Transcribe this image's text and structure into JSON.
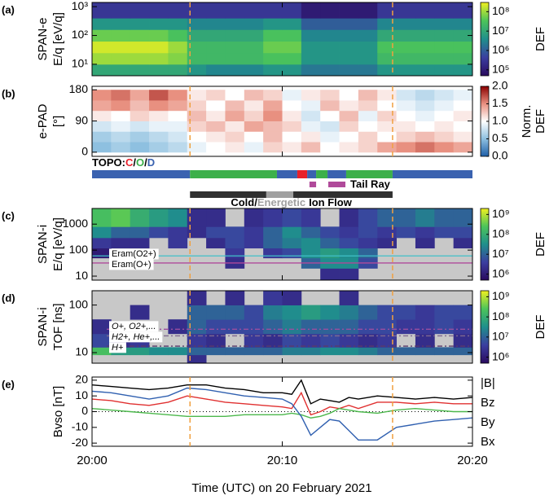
{
  "figure": {
    "xlim": [
      0,
      20
    ],
    "xticks": [
      {
        "value": 0,
        "label": "20:00"
      },
      {
        "value": 10,
        "label": "20:10"
      },
      {
        "value": 20,
        "label": "20:20"
      }
    ],
    "xlabel": "Time (UTC) on 20 February 2021",
    "markers": [
      5.15,
      15.8
    ],
    "marker_color": "#f0a040",
    "topology": {
      "label": "TOPO:",
      "separator": "/",
      "classes": [
        {
          "name": "C",
          "color": "#e8202a"
        },
        {
          "name": "O",
          "color": "#3cb04a"
        },
        {
          "name": "D",
          "color": "#3a62b0"
        }
      ],
      "segments": [
        {
          "start": 0,
          "end": 5.15,
          "class": 2
        },
        {
          "start": 5.15,
          "end": 9.72,
          "class": 1
        },
        {
          "start": 9.72,
          "end": 10.79,
          "class": 2
        },
        {
          "start": 10.79,
          "end": 11.31,
          "class": 0
        },
        {
          "start": 11.31,
          "end": 11.78,
          "class": 2
        },
        {
          "start": 11.78,
          "end": 12.38,
          "class": 1
        },
        {
          "start": 12.38,
          "end": 13.36,
          "class": 2
        },
        {
          "start": 13.36,
          "end": 15.8,
          "class": 1
        },
        {
          "start": 15.8,
          "end": 20,
          "class": 2
        }
      ]
    },
    "tail_ray": {
      "label": "Tail Ray",
      "color": "#b04a9a",
      "segments": [
        {
          "start": 11.43,
          "end": 11.78
        },
        {
          "start": 12.42,
          "end": 13.32
        }
      ]
    },
    "ion_flow": {
      "separator": "/",
      "suffix": "Ion Flow",
      "classes": [
        {
          "name": "Cold",
          "color": "#303030"
        },
        {
          "name": "Energetic",
          "color": "#a0a0a0"
        }
      ],
      "segments": [
        {
          "start": 5.15,
          "end": 9.16,
          "class": 0
        },
        {
          "start": 9.16,
          "end": 10.58,
          "class": 1
        },
        {
          "start": 10.58,
          "end": 15.8,
          "class": 0
        }
      ]
    }
  },
  "chart_data": [
    {
      "type": "heatmap",
      "label": "(a)",
      "ylabel": [
        "SPAN-e",
        "E/q [eV/q]"
      ],
      "ylog": true,
      "ylim": [
        4,
        1400
      ],
      "yticks": [
        {
          "value": 10,
          "label": "10¹"
        },
        {
          "value": 100,
          "label": "10²"
        },
        {
          "value": 1000,
          "label": "10³"
        }
      ],
      "x_edges": [
        0,
        1,
        2,
        3,
        4,
        5,
        6,
        7,
        8,
        9,
        10,
        11,
        12,
        13,
        14,
        15,
        16,
        17,
        18,
        19,
        20
      ],
      "y_edges": [
        4,
        10,
        25,
        63,
        160,
        400,
        1400
      ],
      "z": [
        [
          10000000.0,
          10000000.0,
          10000000.0,
          10000000.0,
          10000000.0,
          5000000.0,
          3000000.0,
          3000000.0,
          3000000.0,
          5000000.0,
          5000000.0,
          2000000.0,
          2000000.0,
          2000000.0,
          2000000.0,
          5000000.0,
          5000000.0,
          5000000.0,
          5000000.0,
          5000000.0
        ],
        [
          100000000.0,
          100000000.0,
          100000000.0,
          100000000.0,
          70000000.0,
          20000000.0,
          20000000.0,
          20000000.0,
          20000000.0,
          30000000.0,
          30000000.0,
          5000000.0,
          5000000.0,
          5000000.0,
          5000000.0,
          20000000.0,
          20000000.0,
          20000000.0,
          20000000.0,
          20000000.0
        ],
        [
          200000000.0,
          200000000.0,
          200000000.0,
          200000000.0,
          100000000.0,
          20000000.0,
          20000000.0,
          20000000.0,
          20000000.0,
          50000000.0,
          50000000.0,
          5000000.0,
          5000000.0,
          5000000.0,
          5000000.0,
          30000000.0,
          30000000.0,
          30000000.0,
          30000000.0,
          30000000.0
        ],
        [
          50000000.0,
          50000000.0,
          50000000.0,
          50000000.0,
          30000000.0,
          10000000.0,
          10000000.0,
          10000000.0,
          10000000.0,
          30000000.0,
          30000000.0,
          3000000.0,
          3000000.0,
          3000000.0,
          3000000.0,
          10000000.0,
          10000000.0,
          10000000.0,
          10000000.0,
          10000000.0
        ],
        [
          5000000.0,
          5000000.0,
          5000000.0,
          5000000.0,
          5000000.0,
          3000000.0,
          3000000.0,
          3000000.0,
          3000000.0,
          5000000.0,
          5000000.0,
          1000000.0,
          1000000.0,
          1000000.0,
          1000000.0,
          3000000.0,
          3000000.0,
          3000000.0,
          3000000.0,
          3000000.0
        ],
        [
          300000.0,
          300000.0,
          300000.0,
          300000.0,
          300000.0,
          300000.0,
          300000.0,
          300000.0,
          300000.0,
          300000.0,
          300000.0,
          100000.0,
          100000.0,
          100000.0,
          100000.0,
          300000.0,
          300000.0,
          300000.0,
          300000.0,
          300000.0
        ]
      ],
      "zlog": true,
      "zlim": [
        50000.0,
        300000000.0
      ],
      "colormap": "viridis",
      "zlabel": [
        "DEF"
      ],
      "zticks": [
        {
          "value": 100000.0,
          "label": "10⁵"
        },
        {
          "value": 1000000.0,
          "label": "10⁶"
        },
        {
          "value": 10000000.0,
          "label": "10⁷"
        },
        {
          "value": 100000000.0,
          "label": "10⁸"
        }
      ]
    },
    {
      "type": "heatmap",
      "label": "(b)",
      "ylabel": [
        "e-PAD",
        "[°]"
      ],
      "ylog": false,
      "ylim": [
        -12,
        190
      ],
      "yticks": [
        0,
        90,
        180
      ],
      "x_edges": [
        0,
        1,
        2,
        3,
        4,
        5,
        6,
        7,
        8,
        9,
        10,
        11,
        12,
        13,
        14,
        15,
        16,
        17,
        18,
        19,
        20
      ],
      "y_edges": [
        0,
        30,
        60,
        90,
        120,
        150,
        180
      ],
      "z": [
        [
          0.5,
          0.6,
          0.5,
          0.6,
          0.7,
          0.9,
          1.0,
          1.1,
          0.9,
          1.2,
          1.1,
          1.3,
          1.0,
          1.1,
          1.2,
          1.4,
          1.5,
          1.6,
          1.5,
          1.4
        ],
        [
          0.6,
          0.7,
          0.6,
          0.7,
          0.8,
          1.0,
          1.1,
          1.2,
          1.0,
          1.3,
          1.0,
          1.1,
          0.9,
          1.0,
          1.2,
          1.0,
          1.2,
          1.3,
          1.2,
          1.1
        ],
        [
          0.8,
          0.9,
          0.8,
          0.9,
          0.9,
          1.2,
          1.3,
          1.1,
          1.4,
          1.3,
          1.2,
          0.9,
          0.8,
          1.2,
          1.0,
          1.1,
          1.1,
          1.0,
          1.1,
          1.0
        ],
        [
          1.1,
          1.0,
          1.2,
          1.1,
          1.0,
          1.3,
          1.1,
          1.4,
          1.2,
          1.5,
          1.1,
          0.8,
          1.0,
          1.3,
          0.9,
          1.2,
          1.0,
          0.9,
          1.0,
          1.1
        ],
        [
          1.4,
          1.5,
          1.3,
          1.5,
          1.4,
          1.2,
          1.0,
          1.3,
          1.1,
          1.4,
          1.0,
          0.9,
          1.3,
          1.1,
          1.2,
          1.0,
          0.9,
          0.8,
          0.9,
          1.0
        ],
        [
          1.5,
          1.6,
          1.4,
          1.7,
          1.5,
          1.1,
          1.2,
          1.0,
          1.3,
          1.2,
          0.9,
          1.1,
          1.2,
          1.0,
          1.3,
          1.1,
          0.8,
          0.7,
          0.8,
          0.9
        ]
      ],
      "zlog": false,
      "zlim": [
        0,
        2
      ],
      "colormap": "bwr",
      "zlabel": [
        "Norm.",
        "DEF"
      ],
      "zticks": [
        {
          "value": 0,
          "label": "0.0"
        },
        0.5,
        {
          "value": 1,
          "label": "1.0"
        },
        1.5,
        {
          "value": 2,
          "label": "2.0"
        }
      ]
    },
    {
      "type": "heatmap",
      "label": "(c)",
      "ylabel": [
        "SPAN-i",
        "E/q [eV/q]"
      ],
      "ylog": true,
      "ylim": [
        7,
        4000
      ],
      "yticks": [
        10,
        100,
        1000
      ],
      "missing_color": "#c8c8c8",
      "x_edges": [
        0,
        1,
        2,
        3,
        4,
        5,
        6,
        7,
        8,
        9,
        10,
        11,
        12,
        13,
        14,
        15,
        16,
        17,
        18,
        19,
        20
      ],
      "y_edges": [
        7,
        20,
        50,
        120,
        300,
        800,
        4000
      ],
      "z": [
        [
          null,
          null,
          null,
          null,
          null,
          null,
          null,
          null,
          null,
          null,
          null,
          null,
          2000000.0,
          2000000.0,
          null,
          null,
          null,
          null,
          null,
          null
        ],
        [
          null,
          null,
          null,
          null,
          null,
          null,
          null,
          2000000.0,
          null,
          null,
          null,
          10000000.0,
          30000000.0,
          30000000.0,
          5000000.0,
          null,
          null,
          null,
          null,
          null
        ],
        [
          1000000.0,
          null,
          null,
          null,
          null,
          null,
          null,
          3000000.0,
          null,
          3000000.0,
          5000000.0,
          30000000.0,
          50000000.0,
          30000000.0,
          10000000.0,
          null,
          null,
          null,
          null,
          null
        ],
        [
          3000000.0,
          2000000.0,
          2000000.0,
          null,
          3000000.0,
          null,
          2000000.0,
          5000000.0,
          3000000.0,
          10000000.0,
          20000000.0,
          30000000.0,
          10000000.0,
          5000000.0,
          3000000.0,
          2000000.0,
          null,
          2000000.0,
          null,
          2000000.0
        ],
        [
          30000000.0,
          10000000.0,
          10000000.0,
          5000000.0,
          3000000.0,
          2000000.0,
          5000000.0,
          5000000.0,
          3000000.0,
          10000000.0,
          30000000.0,
          10000000.0,
          5000000.0,
          3000000.0,
          5000000.0,
          3000000.0,
          5000000.0,
          3000000.0,
          5000000.0,
          5000000.0
        ],
        [
          200000000.0,
          300000000.0,
          100000000.0,
          50000000.0,
          30000000.0,
          2000000.0,
          2000000.0,
          null,
          2000000.0,
          3000000.0,
          5000000.0,
          3000000.0,
          null,
          2000000.0,
          5000000.0,
          10000000.0,
          10000000.0,
          20000000.0,
          10000000.0,
          10000000.0
        ]
      ],
      "ref_lines": [
        {
          "label": "Eram(O2+)",
          "value": 60,
          "color": "#40c0c8"
        },
        {
          "label": "Eram(O+)",
          "value": 32,
          "color": "#b04a9a"
        }
      ],
      "ref_style": "solid",
      "zlog": true,
      "zlim": [
        500000.0,
        2000000000.0
      ],
      "colormap": "viridis",
      "zlabel": [
        "DEF"
      ],
      "zticks": [
        {
          "value": 1000000.0,
          "label": "10⁶"
        },
        {
          "value": 10000000.0,
          "label": "10⁷"
        },
        {
          "value": 100000000.0,
          "label": "10⁸"
        },
        {
          "value": 1000000000.0,
          "label": "10⁹"
        }
      ]
    },
    {
      "type": "heatmap",
      "label": "(d)",
      "ylabel": [
        "SPAN-i",
        "TOF [ns]"
      ],
      "ylog": true,
      "ylim": [
        6,
        200
      ],
      "yticks": [
        10,
        100
      ],
      "missing_color": "#c8c8c8",
      "x_edges": [
        0,
        1,
        2,
        3,
        4,
        5,
        6,
        7,
        8,
        9,
        10,
        11,
        12,
        13,
        14,
        15,
        16,
        17,
        18,
        19,
        20
      ],
      "y_edges": [
        6,
        9,
        13,
        25,
        50,
        100,
        200
      ],
      "z": [
        [
          null,
          null,
          null,
          null,
          null,
          2000000.0,
          null,
          null,
          null,
          null,
          null,
          null,
          null,
          null,
          null,
          null,
          null,
          null,
          null,
          null
        ],
        [
          200000000.0,
          50000000.0,
          50000000.0,
          30000000.0,
          30000000.0,
          10000000.0,
          10000000.0,
          10000000.0,
          10000000.0,
          10000000.0,
          20000000.0,
          20000000.0,
          30000000.0,
          30000000.0,
          20000000.0,
          10000000.0,
          10000000.0,
          10000000.0,
          10000000.0,
          10000000.0
        ],
        [
          5000000.0,
          2000000.0,
          3000000.0,
          null,
          null,
          3000000.0,
          2000000.0,
          null,
          3000000.0,
          2000000.0,
          5000000.0,
          3000000.0,
          5000000.0,
          3000000.0,
          2000000.0,
          3000000.0,
          null,
          2000000.0,
          null,
          2000000.0
        ],
        [
          2000000.0,
          null,
          null,
          null,
          2000000.0,
          10000000.0,
          5000000.0,
          5000000.0,
          5000000.0,
          10000000.0,
          20000000.0,
          10000000.0,
          10000000.0,
          10000000.0,
          5000000.0,
          5000000.0,
          3000000.0,
          3000000.0,
          5000000.0,
          3000000.0
        ],
        [
          null,
          null,
          2000000.0,
          null,
          null,
          10000000.0,
          10000000.0,
          10000000.0,
          5000000.0,
          20000000.0,
          30000000.0,
          50000000.0,
          30000000.0,
          20000000.0,
          10000000.0,
          5000000.0,
          5000000.0,
          3000000.0,
          5000000.0,
          5000000.0
        ],
        [
          null,
          null,
          null,
          null,
          null,
          2000000.0,
          null,
          2000000.0,
          null,
          3000000.0,
          2000000.0,
          null,
          null,
          2000000.0,
          null,
          null,
          null,
          null,
          null,
          null
        ]
      ],
      "ref_lines": [
        {
          "label": "O+, O2+,...",
          "value": 31,
          "color": "#9a4ea0"
        },
        {
          "label": "H2+, He+,...",
          "value": 22.5,
          "color": "#806a90"
        },
        {
          "label": "H+",
          "value": 13.7,
          "color": "#5a3a6a"
        }
      ],
      "ref_style": "dashed",
      "ref_label_color": "#000000",
      "zlog": true,
      "zlim": [
        500000.0,
        2000000000.0
      ],
      "colormap": "viridis",
      "zlabel": [
        "DEF"
      ],
      "zticks": [
        {
          "value": 1000000.0,
          "label": "10⁶"
        },
        {
          "value": 10000000.0,
          "label": "10⁷"
        },
        {
          "value": 100000000.0,
          "label": "10⁸"
        },
        {
          "value": 1000000000.0,
          "label": "10⁹"
        }
      ]
    },
    {
      "type": "line",
      "label": "(e)",
      "ylabel": [
        "Bvso [nT]"
      ],
      "ylog": false,
      "ylim": [
        -22,
        22
      ],
      "yticks": [
        -20,
        -10,
        0,
        10,
        20
      ],
      "zero_line": true,
      "x": [
        0,
        1,
        2,
        3,
        4,
        5,
        6,
        7,
        8,
        9,
        10,
        10.5,
        11,
        11.5,
        12,
        12.5,
        13,
        13.5,
        14,
        15,
        16,
        17,
        18,
        19,
        20
      ],
      "series": [
        {
          "name": "|B|",
          "color": "#000000",
          "values": [
            17,
            16,
            15,
            14,
            15,
            17,
            17,
            15,
            14,
            12,
            12,
            11,
            20,
            5,
            8,
            7,
            6,
            9,
            8,
            10,
            9,
            8,
            9,
            8,
            9
          ]
        },
        {
          "name": "Bz",
          "color": "#e03030",
          "values": [
            8,
            7,
            5,
            4,
            6,
            10,
            8,
            6,
            5,
            4,
            3,
            2,
            12,
            -2,
            0,
            3,
            2,
            4,
            2,
            6,
            6,
            5,
            6,
            5,
            5
          ]
        },
        {
          "name": "By",
          "color": "#4cb84c",
          "values": [
            2,
            1,
            0,
            -1,
            -2,
            -3,
            -3,
            -3,
            -2,
            -2,
            -2,
            -1,
            -2,
            -4,
            -3,
            -1,
            2,
            1,
            0,
            -1,
            1,
            2,
            1,
            0,
            0
          ]
        },
        {
          "name": "Bx",
          "color": "#3060b0",
          "values": [
            13,
            12,
            10,
            8,
            10,
            15,
            14,
            12,
            10,
            9,
            8,
            5,
            -3,
            -15,
            -10,
            -5,
            -6,
            -12,
            -18,
            -18,
            -10,
            -8,
            -6,
            -5,
            -4
          ]
        }
      ]
    }
  ]
}
